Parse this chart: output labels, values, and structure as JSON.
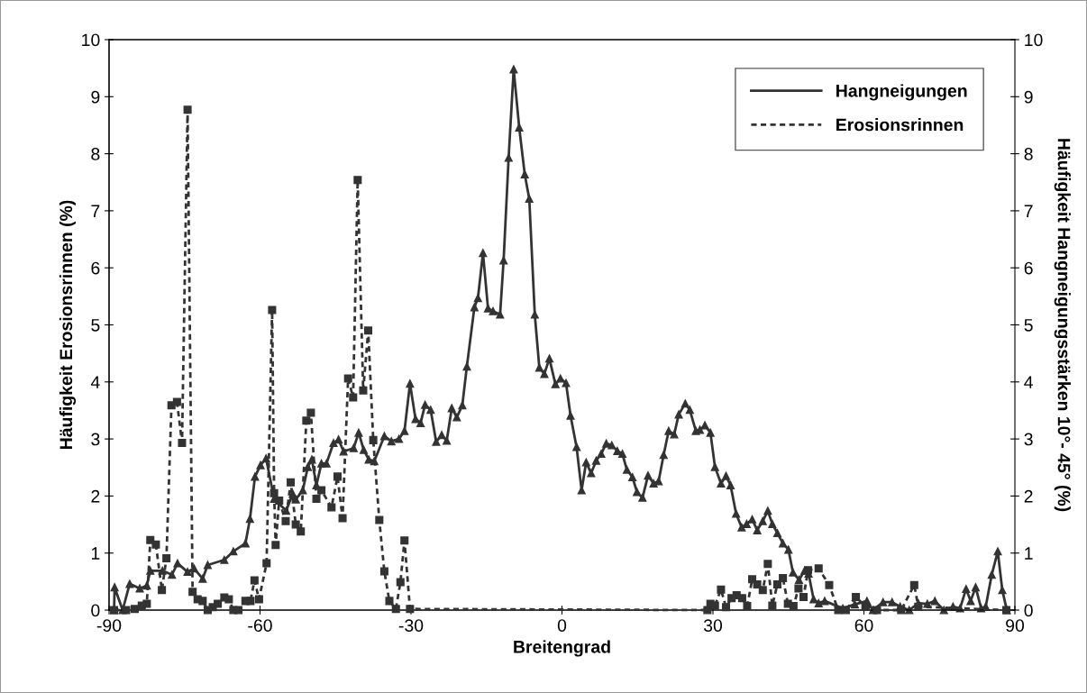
{
  "chart_data": {
    "type": "line",
    "xlabel": "Breitengrad",
    "ylabel": "Häufigkeit Erosionsrinnen (%)",
    "y2label": "Häufigkeit Hangneigungsstärken 10°- 45° (%)",
    "xlim": [
      -90,
      90
    ],
    "xticks": [
      -90,
      -60,
      -30,
      0,
      30,
      60,
      90
    ],
    "ylim": [
      0,
      10
    ],
    "yticks": [
      0,
      1,
      2,
      3,
      4,
      5,
      6,
      7,
      8,
      9,
      10
    ],
    "y2lim": [
      0,
      10
    ],
    "y2ticks": [
      0,
      1,
      2,
      3,
      4,
      5,
      6,
      7,
      8,
      9,
      10
    ],
    "grid": false,
    "legend": "top right",
    "series": [
      {
        "name": "Hangneigungen",
        "color": "#333333",
        "axis": "y2",
        "marker": "triangle",
        "line_style": "solid",
        "x": [
          -89,
          -88.9,
          -87.3,
          -85.9,
          -83.9,
          -82.5,
          -81.8,
          -79.4,
          -77.5,
          -76.4,
          -74.4,
          -73.1,
          -71.4,
          -70.4,
          -67.1,
          -65.3,
          -62.9,
          -62.0,
          -61.0,
          -59.9,
          -58.8,
          -57.2,
          -54.8,
          -53.5,
          -52.9,
          -51.5,
          -50.5,
          -49.7,
          -48.8,
          -47.8,
          -46.8,
          -45.4,
          -44.4,
          -43.4,
          -41.4,
          -40.4,
          -39.4,
          -38.4,
          -37.3,
          -35.3,
          -33.9,
          -32.4,
          -31.3,
          -30.2,
          -29.1,
          -28.1,
          -27.2,
          -26.1,
          -25.0,
          -23.9,
          -22.9,
          -21.9,
          -20.9,
          -19.8,
          -18.9,
          -17.4,
          -16.7,
          -15.7,
          -14.7,
          -13.7,
          -12.3,
          -11.6,
          -10.6,
          -9.6,
          -8.5,
          -7.4,
          -6.5,
          -5.4,
          -4.5,
          -3.5,
          -2.5,
          -1.3,
          -0.3,
          0.8,
          1.7,
          2.9,
          3.9,
          4.8,
          5.8,
          6.8,
          7.8,
          8.8,
          9.9,
          11.0,
          12.0,
          12.9,
          14.0,
          14.9,
          16.0,
          17.1,
          18.2,
          19.2,
          20.2,
          21.2,
          22.3,
          23.2,
          24.5,
          25.4,
          26.6,
          27.4,
          28.4,
          29.5,
          30.4,
          31.6,
          32.6,
          33.5,
          34.6,
          35.7,
          36.7,
          37.8,
          38.8,
          39.9,
          40.9,
          41.8,
          42.8,
          43.9,
          45.0,
          45.9,
          47.1,
          48.2,
          49.0,
          50.0,
          51.0,
          52.2,
          55.8,
          58.2,
          60.6,
          61.8,
          63.8,
          65.6,
          67.2,
          69.0,
          70.8,
          72.6,
          74.1,
          75.9,
          77.7,
          79.1,
          80.3,
          81.2,
          82.2,
          83.3,
          84.2,
          85.4,
          86.6,
          87.5,
          88.4
        ],
        "values": [
          0,
          0.4,
          0,
          0.46,
          0.38,
          0.43,
          0.69,
          0.69,
          0.62,
          0.82,
          0.67,
          0.73,
          0.55,
          0.79,
          0.88,
          1.03,
          1.17,
          1.6,
          2.34,
          2.54,
          2.66,
          1.95,
          1.74,
          2.04,
          1.94,
          2.1,
          2.51,
          2.64,
          2.19,
          2.57,
          2.57,
          2.93,
          2.99,
          2.78,
          2.84,
          3.11,
          2.81,
          2.64,
          2.61,
          3.05,
          2.96,
          3.0,
          3.14,
          3.97,
          3.35,
          3.28,
          3.6,
          3.51,
          2.95,
          3.07,
          2.97,
          3.54,
          3.38,
          3.59,
          4.27,
          5.31,
          5.47,
          6.26,
          5.29,
          5.24,
          5.18,
          6.13,
          7.93,
          9.48,
          8.46,
          7.64,
          7.21,
          5.18,
          4.25,
          4.14,
          4.41,
          3.96,
          4.06,
          3.98,
          3.41,
          2.86,
          2.1,
          2.59,
          2.4,
          2.62,
          2.74,
          2.92,
          2.89,
          2.79,
          2.74,
          2.46,
          2.33,
          2.07,
          1.97,
          2.36,
          2.22,
          2.26,
          2.72,
          3.14,
          3.08,
          3.43,
          3.62,
          3.51,
          3.14,
          3.16,
          3.24,
          3.11,
          2.51,
          2.22,
          2.35,
          2.19,
          1.69,
          1.45,
          1.51,
          1.59,
          1.4,
          1.56,
          1.74,
          1.51,
          1.35,
          1.17,
          1.06,
          0.66,
          0.53,
          0.69,
          0.64,
          0.19,
          0.12,
          0.16,
          0.03,
          0.1,
          0.16,
          0,
          0.14,
          0.14,
          0.06,
          0,
          0.12,
          0.11,
          0.16,
          0,
          0.06,
          0.03,
          0.37,
          0.16,
          0.4,
          0.03,
          0.06,
          0.62,
          1.03,
          0.35,
          0
        ]
      },
      {
        "name": "Erosionsrinnen",
        "color": "#333333",
        "axis": "y",
        "marker": "square",
        "line_style": "dashed",
        "x": [
          -89,
          -86.6,
          -84.9,
          -83.5,
          -82.5,
          -81.8,
          -80.7,
          -79.5,
          -78.6,
          -77.6,
          -76.5,
          -75.5,
          -74.4,
          -73.4,
          -72.4,
          -71.4,
          -70.4,
          -69.4,
          -68.4,
          -67.1,
          -66.2,
          -65.3,
          -64.3,
          -62.9,
          -61.9,
          -61.1,
          -60.2,
          -58.7,
          -57.6,
          -57.2,
          -56.9,
          -56.2,
          -54.9,
          -53.9,
          -52.9,
          -51.9,
          -50.8,
          -49.9,
          -48.8,
          -47.8,
          -45.8,
          -44.6,
          -43.6,
          -42.5,
          -41.5,
          -40.6,
          -39.5,
          -38.5,
          -37.5,
          -36.3,
          -35.3,
          -34.3,
          -33.0,
          -32.1,
          -31.3,
          -30.2,
          28.9,
          29.5,
          30.4,
          31.6,
          32.6,
          33.7,
          34.7,
          35.8,
          36.8,
          37.8,
          38.8,
          39.9,
          40.9,
          41.8,
          42.8,
          43.9,
          44.9,
          46.0,
          47.0,
          48.0,
          48.9,
          51.0,
          53.1,
          54.9,
          56.4,
          58.4,
          60.3,
          62.6,
          67.4,
          70.0,
          70.8,
          88.3
        ],
        "values": [
          0,
          0,
          0.02,
          0.08,
          0.11,
          1.23,
          1.15,
          0.35,
          0.91,
          3.59,
          3.65,
          2.93,
          8.77,
          0.32,
          0.19,
          0.16,
          0,
          0.05,
          0.11,
          0.22,
          0.19,
          0,
          0,
          0.16,
          0.16,
          0.52,
          0.19,
          0.82,
          5.26,
          2.05,
          1.14,
          1.92,
          1.56,
          2.24,
          1.5,
          1.38,
          3.32,
          3.46,
          1.95,
          2.1,
          1.8,
          2.34,
          1.61,
          4.06,
          3.73,
          7.54,
          3.85,
          4.9,
          2.98,
          1.58,
          0.68,
          0.16,
          0.02,
          0.49,
          1.22,
          0.02,
          0,
          0.11,
          0.08,
          0.36,
          0.05,
          0.21,
          0.26,
          0.21,
          0.07,
          0.54,
          0.45,
          0.35,
          0.81,
          0.08,
          0.45,
          0.56,
          0.11,
          0.07,
          0.38,
          0.23,
          0.7,
          0.73,
          0.44,
          0,
          0,
          0.23,
          0.06,
          0,
          0,
          0.44,
          0.06,
          0
        ]
      }
    ]
  }
}
